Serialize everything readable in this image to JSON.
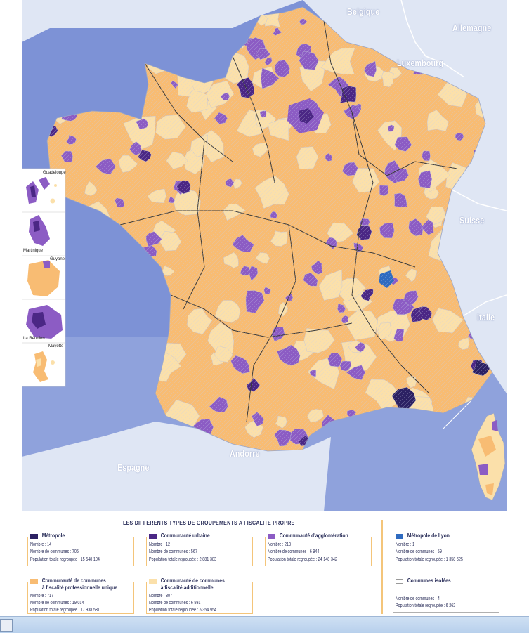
{
  "colors": {
    "sea": "#7d92d6",
    "sea_light": "#a7b8e6",
    "neighbour_land": "#dfe6f4",
    "metropole": "#2c2163",
    "communaute_urbaine": "#4b2785",
    "communaute_agglomeration": "#8c5cc4",
    "cc_fpu": "#f8bc73",
    "cc_fa": "#fbe0aa",
    "metropole_lyon": "#2f6bc0",
    "communes_isolees": "#ffffff",
    "region_border": "#3a3a3a",
    "legend_text": "#2b2f5a"
  },
  "countries": {
    "belgique": "Belgique",
    "allemagne": "Allemagne",
    "luxembourg": "Luxembourg",
    "suisse": "Suisse",
    "italie": "Italie",
    "espagne": "Espagne",
    "andorre": "Andorre"
  },
  "insets": {
    "guadeloupe": "Guadeloupe",
    "martinique": "Martinique",
    "guyane": "Guyane",
    "reunion": "La Réunion",
    "mayotte": "Mayotte"
  },
  "legend": {
    "title": "LES DIFFERENTS TYPES DE GROUPEMENTS A FISCALITE PROPRE",
    "items": [
      {
        "name": "Métropole",
        "name2": "",
        "nombre": "Nombre : 14",
        "communes": "Nombre de communes : 706",
        "population": "Population totale regroupée : 15 548 104"
      },
      {
        "name": "Communauté urbaine",
        "name2": "",
        "nombre": "Nombre : 12",
        "communes": "Nombre de communes : 567",
        "population": "Population totale regroupée : 2 881 383"
      },
      {
        "name": "Communauté d'agglomération",
        "name2": "",
        "nombre": "Nombre : 213",
        "communes": "Nombre de communes : 6 944",
        "population": "Population totale regroupée : 24 148 342"
      },
      {
        "name": "Métropole de Lyon",
        "name2": "",
        "nombre": "Nombre : 1",
        "communes": "Nombre de communes : 59",
        "population": "Population totale regroupée : 1 358 625"
      },
      {
        "name": "Communauté de communes",
        "name2": "à fiscalité professionnelle unique",
        "nombre": "Nombre : 717",
        "communes": "Nombre de communes : 19 014",
        "population": "Population totale regroupée : 17 938 531"
      },
      {
        "name": "Communauté de communes",
        "name2": "à fiscalité additionnelle",
        "nombre": "Nombre : 307",
        "communes": "Nombre de communes : 6 591",
        "population": "Population totale regroupée : 5 354 954"
      },
      {
        "name": "Communes isolées",
        "name2": "",
        "nombre": "",
        "communes": "Nombre de communes : 4",
        "population": "Population totale regroupée : 6 262"
      }
    ]
  }
}
